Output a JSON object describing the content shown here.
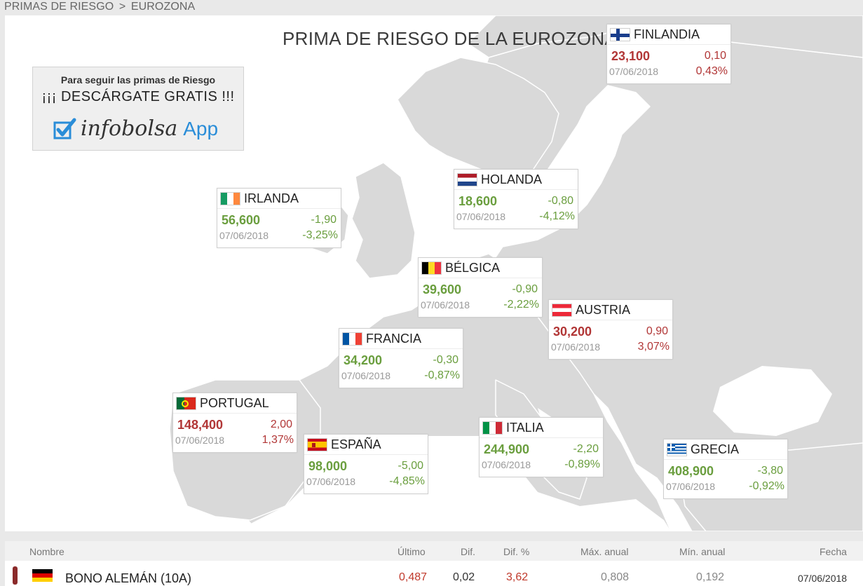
{
  "breadcrumb": {
    "parent": "PRIMAS DE RIESGO",
    "separator": ">",
    "current": "EUROZONA"
  },
  "map": {
    "title": "PRIMA DE RIESGO DE LA EUROZONA",
    "colors": {
      "land": "#d9d9d9",
      "sea": "#ffffff",
      "border": "#ffffff",
      "positive": "#b13636",
      "negative": "#6a9e3e"
    }
  },
  "promo": {
    "line1": "Para seguir las primas de Riesgo",
    "line2": "¡¡¡ DESCÁRGATE GRATIS !!!",
    "brand": "infobolsa",
    "app": "App"
  },
  "cards": {
    "finlandia": {
      "country": "FINLANDIA",
      "value": "23,100",
      "diff": "0,10",
      "date": "07/06/2018",
      "pct": "0,43%"
    },
    "holanda": {
      "country": "HOLANDA",
      "value": "18,600",
      "diff": "-0,80",
      "date": "07/06/2018",
      "pct": "-4,12%"
    },
    "irlanda": {
      "country": "IRLANDA",
      "value": "56,600",
      "diff": "-1,90",
      "date": "07/06/2018",
      "pct": "-3,25%"
    },
    "belgica": {
      "country": "BÉLGICA",
      "value": "39,600",
      "diff": "-0,90",
      "date": "07/06/2018",
      "pct": "-2,22%"
    },
    "austria": {
      "country": "AUSTRIA",
      "value": "30,200",
      "diff": "0,90",
      "date": "07/06/2018",
      "pct": "3,07%"
    },
    "francia": {
      "country": "FRANCIA",
      "value": "34,200",
      "diff": "-0,30",
      "date": "07/06/2018",
      "pct": "-0,87%"
    },
    "portugal": {
      "country": "PORTUGAL",
      "value": "148,400",
      "diff": "2,00",
      "date": "07/06/2018",
      "pct": "1,37%"
    },
    "espana": {
      "country": "ESPAÑA",
      "value": "98,000",
      "diff": "-5,00",
      "date": "07/06/2018",
      "pct": "-4,85%"
    },
    "italia": {
      "country": "ITALIA",
      "value": "244,900",
      "diff": "-2,20",
      "date": "07/06/2018",
      "pct": "-0,89%"
    },
    "grecia": {
      "country": "GRECIA",
      "value": "408,900",
      "diff": "-3,80",
      "date": "07/06/2018",
      "pct": "-0,92%"
    }
  },
  "table": {
    "headers": {
      "name": "Nombre",
      "last": "Último",
      "diff": "Dif.",
      "diff_pct": "Dif. %",
      "max": "Máx. anual",
      "min": "Mín. anual",
      "date": "Fecha"
    },
    "rows": [
      {
        "name": "BONO ALEMÁN (10A)",
        "last": "0,487",
        "diff": "0,02",
        "diff_pct": "3,62",
        "max": "0,808",
        "min": "0,192",
        "date": "07/06/2018"
      }
    ]
  }
}
